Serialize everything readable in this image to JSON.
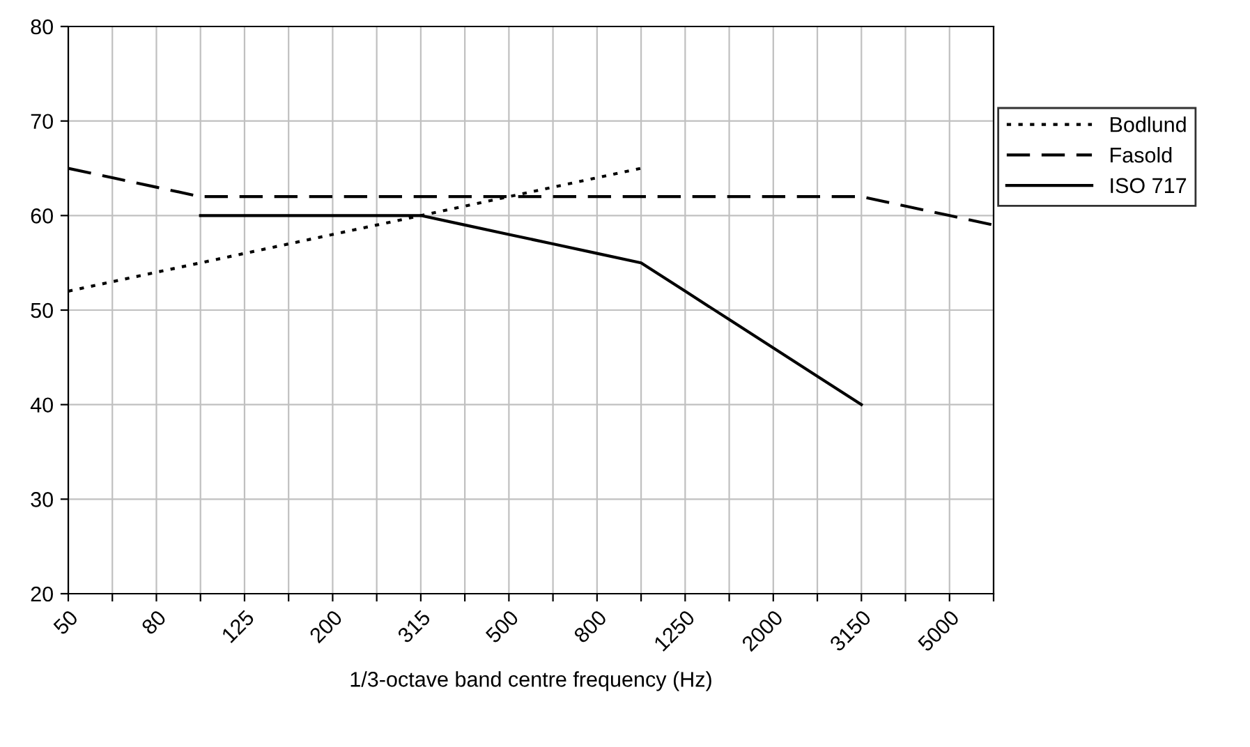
{
  "chart_data": {
    "type": "line",
    "xlabel": "1/3-octave band centre frequency (Hz)",
    "categories": [
      "50",
      null,
      "80",
      null,
      "125",
      null,
      "200",
      null,
      "315",
      null,
      "500",
      null,
      "800",
      null,
      "1250",
      null,
      "2000",
      null,
      "3150",
      null,
      "5000",
      null
    ],
    "series": [
      {
        "name": "Bodlund",
        "color": "#000000",
        "line_style": "dotted",
        "values": [
          52,
          53,
          54,
          55,
          56,
          57,
          58,
          59,
          60,
          61,
          62,
          63,
          64,
          65,
          null,
          null,
          null,
          null,
          null,
          null,
          null,
          null
        ]
      },
      {
        "name": "Fasold",
        "color": "#000000",
        "line_style": "dashed",
        "values": [
          65,
          64,
          63,
          62,
          62,
          62,
          62,
          62,
          62,
          62,
          62,
          62,
          62,
          62,
          62,
          62,
          62,
          62,
          62,
          61,
          60,
          59
        ]
      },
      {
        "name": "ISO 717",
        "color": "#000000",
        "line_style": "solid",
        "values": [
          null,
          null,
          null,
          60,
          60,
          60,
          60,
          60,
          60,
          59,
          58,
          57,
          56,
          55,
          52,
          49,
          46,
          43,
          40,
          null,
          null,
          null
        ]
      }
    ],
    "ylim": [
      20,
      80
    ],
    "yticks": [
      20,
      30,
      40,
      50,
      60,
      70,
      80
    ],
    "grid": true,
    "legend": "right",
    "marker": "none"
  }
}
